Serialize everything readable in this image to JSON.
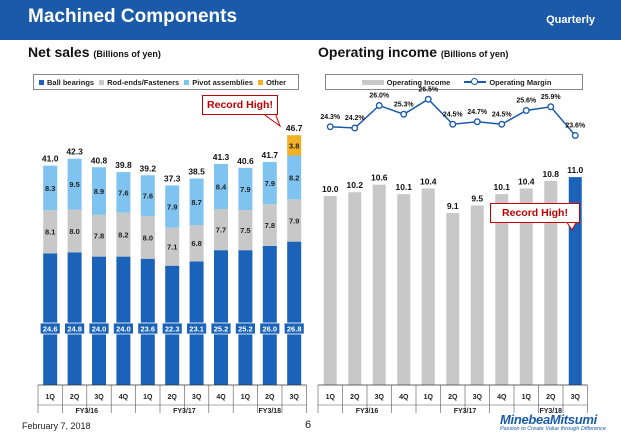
{
  "header": {
    "title": "Machined Components",
    "period": "Quarterly"
  },
  "left": {
    "title": "Net sales",
    "unit": "(Billions of yen)",
    "callout": "Record High!"
  },
  "right": {
    "title": "Operating income",
    "unit": "(Billions of yen)",
    "callout": "Record High!"
  },
  "footer": {
    "date": "February 7, 2018",
    "page": "6",
    "brand": "MinebeaMitsumi",
    "tagline": "Passion to Create Value through Difference"
  },
  "colors": {
    "header": "#1a5aa8",
    "ball": "#1b63b8",
    "rod": "#c8c8c8",
    "pivot": "#7fc3f0",
    "other": "#f2b124",
    "income": "#c8c8c8",
    "highlight": "#1b63b8",
    "margin": "#1a5aa8",
    "callout": "#c00000"
  },
  "chart_data": [
    {
      "type": "bar",
      "stacked": true,
      "title": "Net sales",
      "ylabel": "Billions of yen",
      "categories": [
        "1Q",
        "2Q",
        "3Q",
        "4Q",
        "1Q",
        "2Q",
        "3Q",
        "4Q",
        "1Q",
        "2Q",
        "3Q"
      ],
      "groups": [
        {
          "label": "FY3/16",
          "count": 4
        },
        {
          "label": "FY3/17",
          "count": 4
        },
        {
          "label": "FY3/18",
          "count": 3
        }
      ],
      "series": [
        {
          "name": "Ball bearings",
          "values": [
            24.6,
            24.8,
            24.0,
            24.0,
            23.6,
            22.3,
            23.1,
            25.2,
            25.2,
            26.0,
            26.8
          ]
        },
        {
          "name": "Rod-ends/Fasteners",
          "values": [
            8.1,
            8.0,
            7.8,
            8.2,
            8.0,
            7.1,
            6.8,
            7.7,
            7.5,
            7.8,
            7.9
          ]
        },
        {
          "name": "Pivot assemblies",
          "values": [
            8.3,
            9.5,
            8.9,
            7.6,
            7.6,
            7.9,
            8.7,
            8.4,
            7.9,
            7.9,
            8.2
          ]
        },
        {
          "name": "Other",
          "values": [
            0,
            0,
            0,
            0,
            0,
            0,
            0,
            0,
            0,
            0,
            3.8
          ]
        }
      ],
      "totals": [
        41.0,
        42.3,
        40.8,
        39.8,
        39.2,
        37.3,
        38.5,
        41.3,
        40.6,
        41.7,
        46.7
      ],
      "ylim": [
        0,
        48
      ],
      "annotation": "Record High!"
    },
    {
      "type": "bar",
      "title": "Operating income",
      "ylabel": "Billions of yen",
      "categories": [
        "1Q",
        "2Q",
        "3Q",
        "4Q",
        "1Q",
        "2Q",
        "3Q",
        "4Q",
        "1Q",
        "2Q",
        "3Q"
      ],
      "groups": [
        {
          "label": "FY3/16",
          "count": 4
        },
        {
          "label": "FY3/17",
          "count": 4
        },
        {
          "label": "FY3/18",
          "count": 3
        }
      ],
      "series": [
        {
          "name": "Operating Income",
          "values": [
            10.0,
            10.2,
            10.6,
            10.1,
            10.4,
            9.1,
            9.5,
            10.1,
            10.4,
            10.8,
            11.0
          ]
        },
        {
          "name": "Operating Margin",
          "type": "line",
          "values": [
            24.3,
            24.2,
            26.0,
            25.3,
            26.5,
            24.5,
            24.7,
            24.5,
            25.6,
            25.9,
            23.6
          ],
          "labels": [
            "24.3%",
            "24.2%",
            "26.0%",
            "25.3%",
            "26.5%",
            "24.5%",
            "24.7%",
            "24.5%",
            "25.6%",
            "25.9%",
            "23.6%"
          ]
        }
      ],
      "ylim": [
        0,
        12
      ],
      "annotation": "Record High!"
    }
  ]
}
